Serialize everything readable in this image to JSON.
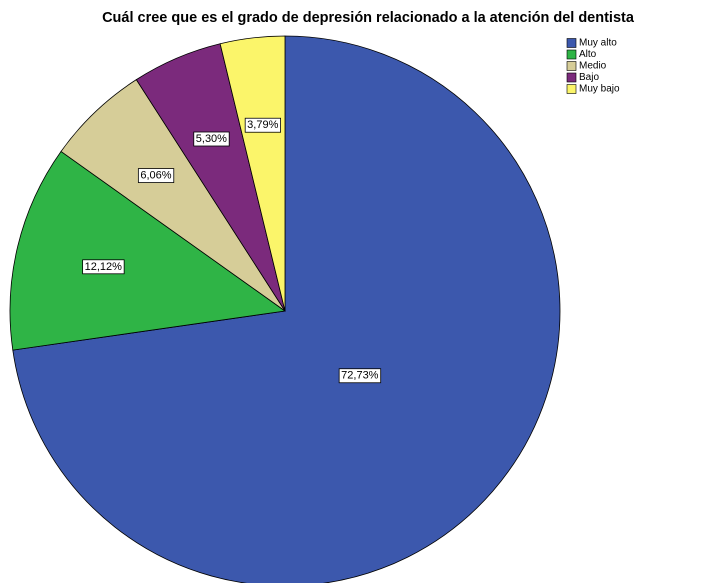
{
  "chart_data": {
    "type": "pie",
    "title": "Cuál cree que es el grado de depresión relacionado a la atención del dentista",
    "categories": [
      "Muy alto",
      "Alto",
      "Medio",
      "Bajo",
      "Muy bajo"
    ],
    "values": [
      72.73,
      12.12,
      6.06,
      5.3,
      3.79
    ],
    "value_labels": [
      "72,73%",
      "12,12%",
      "6,06%",
      "5,30%",
      "3,79%"
    ],
    "colors": [
      "#3c58ad",
      "#2fb446",
      "#d6cd98",
      "#7b2a7c",
      "#fbf56a"
    ],
    "legend": "top-right"
  }
}
